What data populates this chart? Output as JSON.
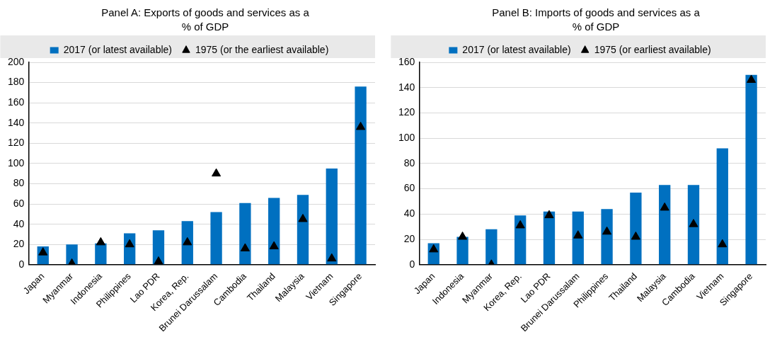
{
  "chart_data": [
    {
      "type": "bar",
      "title": "Panel A: Exports of goods and services as a % of GDP",
      "categories": [
        "Japan",
        "Myanmar",
        "Indonesia",
        "Philippines",
        "Lao PDR",
        "Korea, Rep.",
        "Brunei Darussalam",
        "Cambodia",
        "Thailand",
        "Malaysia",
        "Vietnam",
        "Singapore"
      ],
      "series": [
        {
          "name": "2017 (or latest available)",
          "color": "#0070c0",
          "values": [
            18,
            20,
            21,
            31,
            34,
            43,
            52,
            61,
            66,
            69,
            95,
            176
          ]
        },
        {
          "name": "1975 (or the earliest available)",
          "type": "scatter",
          "marker": "triangle",
          "color": "#000000",
          "x": [
            "Japan",
            "Myanmar",
            "Indonesia",
            "Philippines",
            "Lao PDR",
            "Korea, Rep.",
            "Brunei Darussalam",
            "Cambodia",
            "Thailand",
            "Malaysia",
            "Vietnam",
            "Singapore"
          ],
          "values": [
            12,
            1,
            22,
            20,
            3,
            22,
            90,
            16,
            18,
            45,
            6,
            136
          ]
        }
      ],
      "ylim": [
        0,
        200
      ],
      "yticks": [
        0,
        20,
        40,
        60,
        80,
        100,
        120,
        140,
        160,
        180,
        200
      ],
      "grid": "y",
      "legend": "top"
    },
    {
      "type": "bar",
      "title": "Panel B: Imports of goods and services as a % of GDP",
      "categories": [
        "Japan",
        "Indonesia",
        "Myanmar",
        "Korea, Rep.",
        "Lao PDR",
        "Brunei Darussalam",
        "Philippines",
        "Thailand",
        "Malaysia",
        "Cambodia",
        "Vietnam",
        "Singapore"
      ],
      "series": [
        {
          "name": "2017 (or latest available)",
          "color": "#0070c0",
          "values": [
            17,
            22,
            28,
            39,
            42,
            42,
            44,
            57,
            63,
            63,
            92,
            150
          ]
        },
        {
          "name": "1975 (or earliest available)",
          "type": "scatter",
          "marker": "triangle",
          "color": "#000000",
          "x": [
            "Japan",
            "Indonesia",
            "Myanmar",
            "Korea, Rep.",
            "Lao PDR",
            "Brunei Darussalam",
            "Philippines",
            "Thailand",
            "Malaysia",
            "Cambodia",
            "Vietnam",
            "Singapore"
          ],
          "values": [
            12,
            22,
            0,
            31,
            39,
            23,
            26,
            22,
            45,
            32,
            16,
            146
          ]
        }
      ],
      "ylim": [
        0,
        160
      ],
      "yticks": [
        0,
        20,
        40,
        60,
        80,
        100,
        120,
        140,
        160
      ],
      "grid": "y",
      "legend": "top"
    }
  ]
}
